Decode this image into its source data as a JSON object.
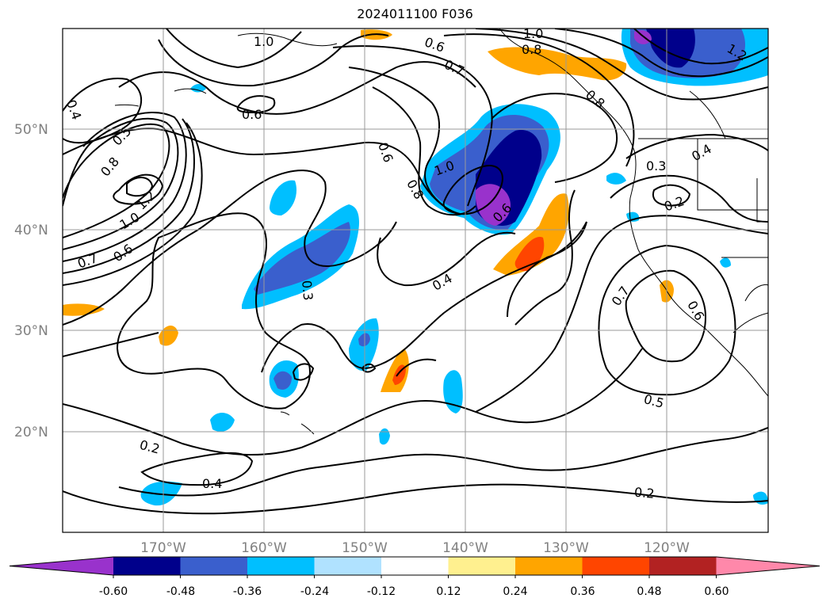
{
  "title": "2024011100 F036",
  "map": {
    "lat_labels": [
      "50°N",
      "40°N",
      "30°N",
      "20°N"
    ],
    "lon_labels": [
      "170°W",
      "160°W",
      "150°W",
      "140°W",
      "130°W",
      "120°W"
    ]
  },
  "colorbar": {
    "colors": [
      "#9932cc",
      "#00008b",
      "#3a5fcd",
      "#00bfff",
      "#b0e2ff",
      "#ffffff",
      "#fff08f",
      "#ffa500",
      "#ff4500",
      "#b22222",
      "#ff88aa"
    ],
    "tick_labels": [
      "-0.60",
      "-0.48",
      "-0.36",
      "-0.24",
      "-0.12",
      "0.12",
      "0.24",
      "0.36",
      "0.48",
      "0.60"
    ]
  },
  "contour_labels": [
    "1.0",
    "0.6",
    "0.7",
    "0.8",
    "1.0",
    "1.2",
    "0.4",
    "0.5",
    "0.6",
    "0.8",
    "0.6",
    "1.2",
    "1.0",
    "0.7",
    "0.6",
    "0.6",
    "0.8",
    "1.0",
    "0.8",
    "0.4",
    "0.3",
    "0.2",
    "0.3",
    "0.4",
    "0.7",
    "0.6",
    "0.5",
    "0.2",
    "0.4",
    "0.2"
  ]
}
